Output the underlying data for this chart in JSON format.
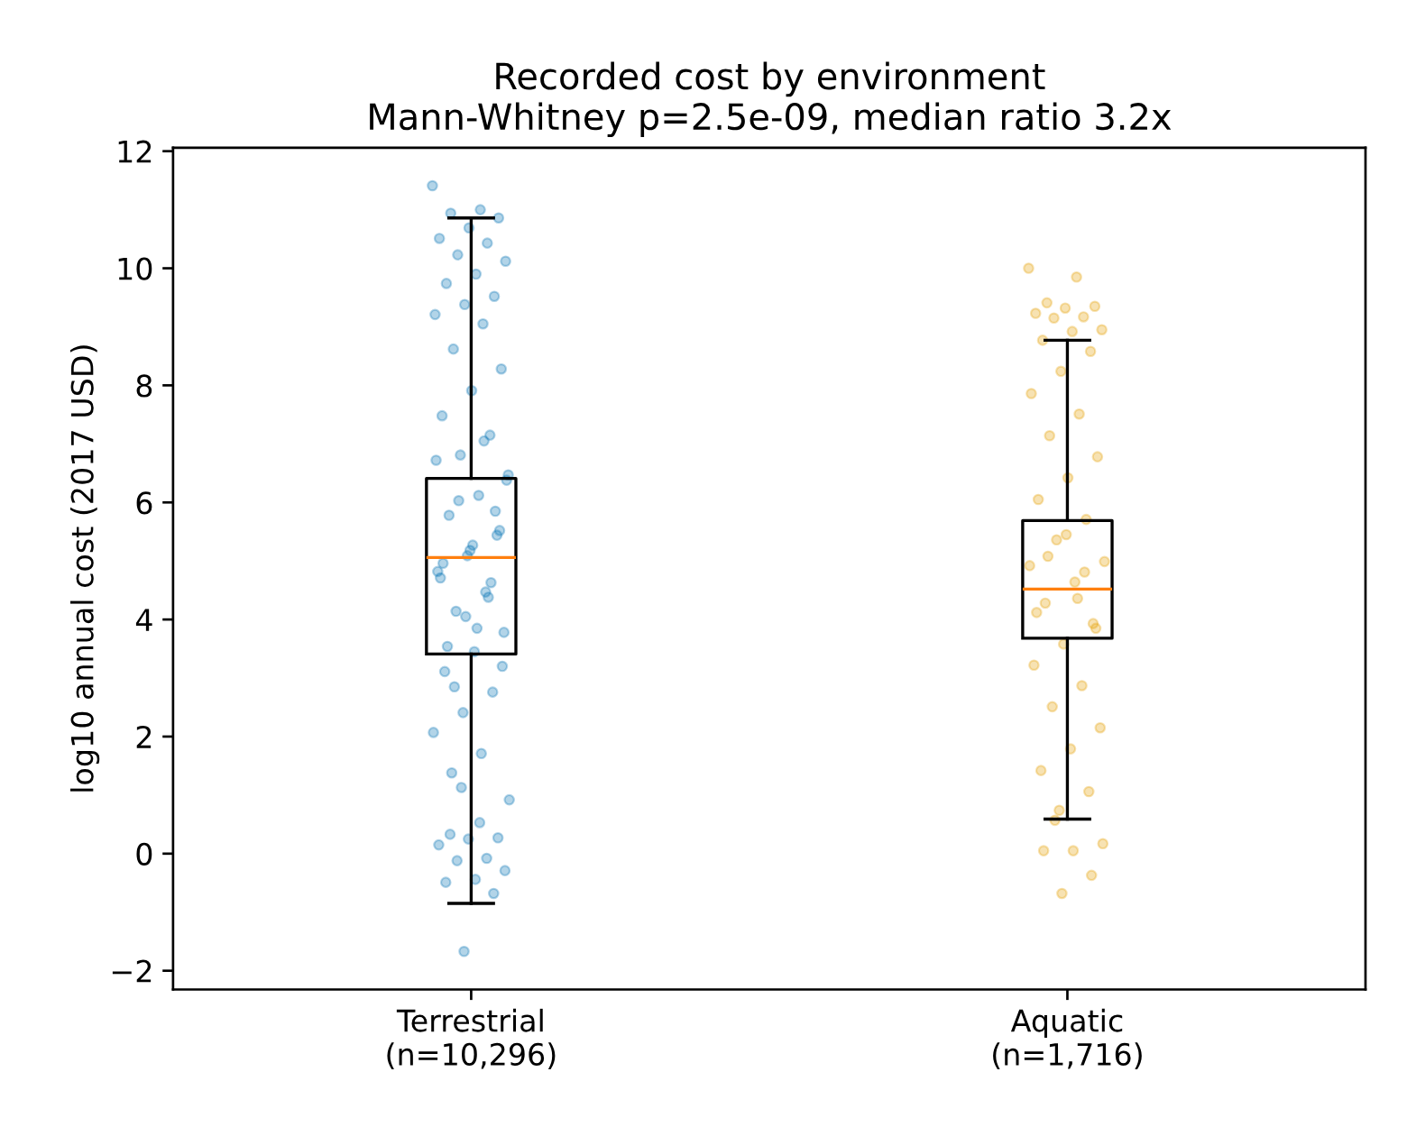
{
  "chart_data": {
    "type": "box",
    "title": "Recorded cost by environment\nMann-Whitney p=2.5e-09, median ratio 3.2x",
    "ylabel": "log10 annual cost (2017 USD)",
    "categories": [
      "Terrestrial\n(n=10,296)",
      "Aquatic\n(n=1,716)"
    ],
    "ylim": [
      -2.32,
      12.06
    ],
    "yticks": [
      {
        "value": -2,
        "label": "−2"
      },
      0,
      2,
      4,
      6,
      8,
      10,
      12
    ],
    "grid": false,
    "series": [
      {
        "type": "scatter",
        "color": "#0072b2",
        "marker": "circle",
        "x": [
          "Terrestrial\n(n=10,296)",
          "Terrestrial\n(n=10,296)",
          "Terrestrial\n(n=10,296)",
          "Terrestrial\n(n=10,296)",
          "Terrestrial\n(n=10,296)",
          "Terrestrial\n(n=10,296)",
          "Terrestrial\n(n=10,296)",
          "Terrestrial\n(n=10,296)",
          "Terrestrial\n(n=10,296)",
          "Terrestrial\n(n=10,296)",
          "Terrestrial\n(n=10,296)",
          "Terrestrial\n(n=10,296)",
          "Terrestrial\n(n=10,296)",
          "Terrestrial\n(n=10,296)",
          "Terrestrial\n(n=10,296)",
          "Terrestrial\n(n=10,296)",
          "Terrestrial\n(n=10,296)",
          "Terrestrial\n(n=10,296)",
          "Terrestrial\n(n=10,296)",
          "Terrestrial\n(n=10,296)",
          "Terrestrial\n(n=10,296)",
          "Terrestrial\n(n=10,296)",
          "Terrestrial\n(n=10,296)",
          "Terrestrial\n(n=10,296)",
          "Terrestrial\n(n=10,296)",
          "Terrestrial\n(n=10,296)",
          "Terrestrial\n(n=10,296)",
          "Terrestrial\n(n=10,296)",
          "Terrestrial\n(n=10,296)",
          "Terrestrial\n(n=10,296)",
          "Terrestrial\n(n=10,296)",
          "Terrestrial\n(n=10,296)",
          "Terrestrial\n(n=10,296)",
          "Terrestrial\n(n=10,296)",
          "Terrestrial\n(n=10,296)",
          "Terrestrial\n(n=10,296)",
          "Terrestrial\n(n=10,296)",
          "Terrestrial\n(n=10,296)",
          "Terrestrial\n(n=10,296)",
          "Terrestrial\n(n=10,296)",
          "Terrestrial\n(n=10,296)",
          "Terrestrial\n(n=10,296)",
          "Terrestrial\n(n=10,296)",
          "Terrestrial\n(n=10,296)",
          "Terrestrial\n(n=10,296)",
          "Terrestrial\n(n=10,296)",
          "Terrestrial\n(n=10,296)",
          "Terrestrial\n(n=10,296)",
          "Terrestrial\n(n=10,296)",
          "Terrestrial\n(n=10,296)",
          "Terrestrial\n(n=10,296)",
          "Terrestrial\n(n=10,296)",
          "Terrestrial\n(n=10,296)",
          "Terrestrial\n(n=10,296)",
          "Terrestrial\n(n=10,296)",
          "Terrestrial\n(n=10,296)",
          "Terrestrial\n(n=10,296)",
          "Terrestrial\n(n=10,296)",
          "Terrestrial\n(n=10,296)",
          "Terrestrial\n(n=10,296)",
          "Terrestrial\n(n=10,296)",
          "Terrestrial\n(n=10,296)",
          "Terrestrial\n(n=10,296)",
          "Terrestrial\n(n=10,296)",
          "Terrestrial\n(n=10,296)",
          "Terrestrial\n(n=10,296)",
          "Terrestrial\n(n=10,296)",
          "Terrestrial\n(n=10,296)"
        ],
        "values": [
          11.41,
          11.0,
          10.94,
          10.86,
          10.69,
          10.51,
          10.43,
          10.23,
          10.12,
          9.9,
          9.74,
          9.52,
          9.38,
          9.21,
          9.05,
          8.62,
          8.28,
          7.91,
          7.48,
          7.15,
          6.81,
          6.47,
          6.12,
          5.78,
          5.44,
          5.09,
          4.82,
          4.47,
          4.14,
          3.78,
          3.45,
          3.11,
          2.76,
          2.41,
          2.07,
          1.71,
          1.38,
          5.52,
          5.18,
          4.71,
          4.38,
          6.03,
          6.38,
          3.85,
          3.54,
          5.85,
          4.05,
          6.72,
          7.05,
          2.85,
          3.2,
          5.27,
          4.96,
          4.63,
          1.13,
          0.92,
          0.53,
          0.33,
          0.27,
          0.25,
          0.15,
          -0.08,
          -0.12,
          -0.29,
          -0.44,
          -0.49,
          -0.68,
          -1.67
        ]
      },
      {
        "type": "scatter",
        "color": "#e69f00",
        "marker": "circle",
        "x": [
          "Aquatic\n(n=1,716)",
          "Aquatic\n(n=1,716)",
          "Aquatic\n(n=1,716)",
          "Aquatic\n(n=1,716)",
          "Aquatic\n(n=1,716)",
          "Aquatic\n(n=1,716)",
          "Aquatic\n(n=1,716)",
          "Aquatic\n(n=1,716)",
          "Aquatic\n(n=1,716)",
          "Aquatic\n(n=1,716)",
          "Aquatic\n(n=1,716)",
          "Aquatic\n(n=1,716)",
          "Aquatic\n(n=1,716)",
          "Aquatic\n(n=1,716)",
          "Aquatic\n(n=1,716)",
          "Aquatic\n(n=1,716)",
          "Aquatic\n(n=1,716)",
          "Aquatic\n(n=1,716)",
          "Aquatic\n(n=1,716)",
          "Aquatic\n(n=1,716)",
          "Aquatic\n(n=1,716)",
          "Aquatic\n(n=1,716)",
          "Aquatic\n(n=1,716)",
          "Aquatic\n(n=1,716)",
          "Aquatic\n(n=1,716)",
          "Aquatic\n(n=1,716)",
          "Aquatic\n(n=1,716)",
          "Aquatic\n(n=1,716)",
          "Aquatic\n(n=1,716)",
          "Aquatic\n(n=1,716)",
          "Aquatic\n(n=1,716)",
          "Aquatic\n(n=1,716)",
          "Aquatic\n(n=1,716)",
          "Aquatic\n(n=1,716)",
          "Aquatic\n(n=1,716)",
          "Aquatic\n(n=1,716)",
          "Aquatic\n(n=1,716)",
          "Aquatic\n(n=1,716)",
          "Aquatic\n(n=1,716)",
          "Aquatic\n(n=1,716)",
          "Aquatic\n(n=1,716)",
          "Aquatic\n(n=1,716)",
          "Aquatic\n(n=1,716)",
          "Aquatic\n(n=1,716)",
          "Aquatic\n(n=1,716)",
          "Aquatic\n(n=1,716)",
          "Aquatic\n(n=1,716)"
        ],
        "values": [
          10.0,
          9.85,
          9.41,
          9.35,
          9.32,
          9.23,
          9.17,
          9.15,
          8.95,
          8.92,
          8.77,
          8.58,
          8.24,
          7.86,
          7.51,
          7.14,
          6.78,
          6.42,
          6.05,
          5.71,
          5.36,
          4.99,
          4.64,
          4.28,
          3.93,
          3.58,
          3.22,
          2.87,
          2.51,
          2.15,
          1.79,
          1.42,
          1.06,
          0.74,
          4.92,
          4.36,
          5.08,
          3.85,
          5.45,
          4.12,
          4.81,
          0.57,
          0.17,
          0.05,
          0.05,
          -0.37,
          -0.68
        ]
      },
      {
        "color": "#000000",
        "boxes": [
          {
            "low": -0.85,
            "q1": 3.41,
            "median": 5.06,
            "q3": 6.41,
            "high": 10.86
          },
          {
            "low": 0.59,
            "q1": 3.68,
            "median": 4.52,
            "q3": 5.69,
            "high": 8.77
          }
        ]
      }
    ]
  }
}
